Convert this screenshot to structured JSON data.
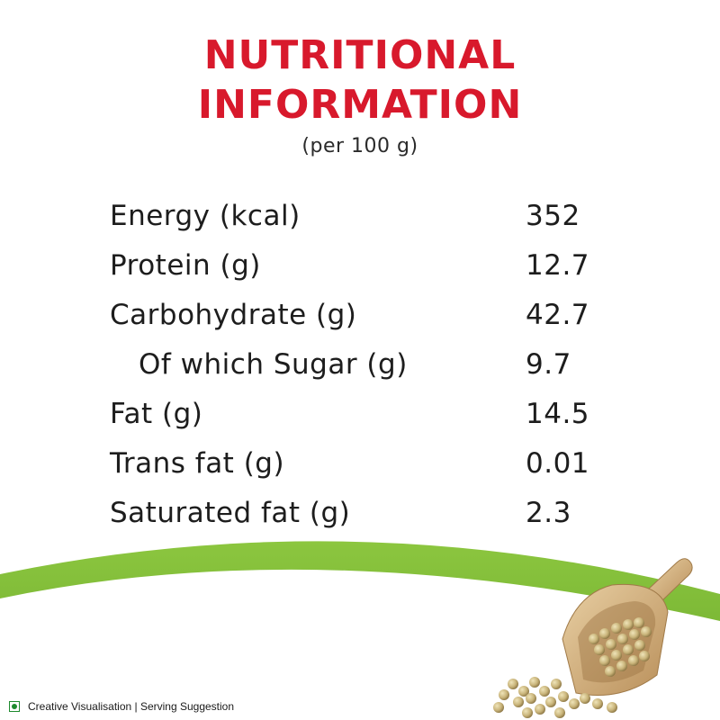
{
  "title": {
    "line1": "NUTRITIONAL",
    "line2": "INFORMATION"
  },
  "subtitle": "(per 100 g)",
  "nutrition": [
    {
      "label": "Energy (kcal)",
      "value": "352"
    },
    {
      "label": "Protein (g)",
      "value": "12.7"
    },
    {
      "label": "Carbohydrate (g)",
      "value": "42.7"
    },
    {
      "label": "Of which Sugar (g)",
      "value": "9.7"
    },
    {
      "label": "Fat (g)",
      "value": "14.5"
    },
    {
      "label": "Trans fat (g)",
      "value": "0.01"
    },
    {
      "label": "Saturated fat (g)",
      "value": "2.3"
    }
  ],
  "footer": {
    "text": "Creative Visualisation | Serving Suggestion"
  },
  "colors": {
    "title": "#d8192c",
    "green": "#7ab833",
    "veg_mark": "#1e8a2e",
    "text": "#1d1d1d"
  }
}
